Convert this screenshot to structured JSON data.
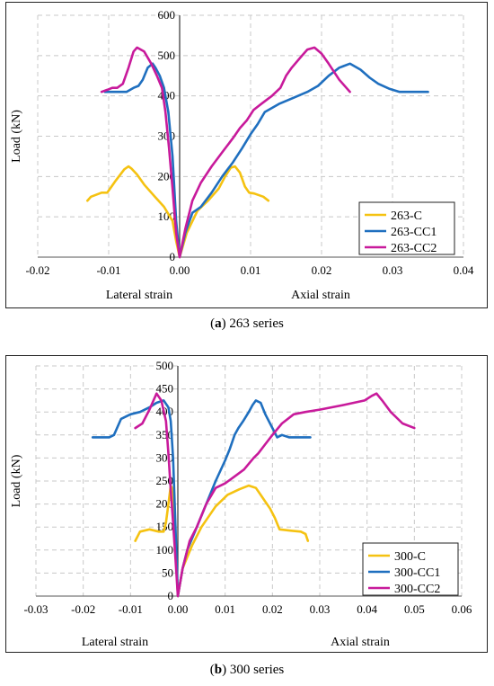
{
  "chart_data": [
    {
      "type": "line",
      "caption_label": "a",
      "caption_text": " 263 series",
      "ylabel": "Load (kN)",
      "xlabel_left": "Lateral strain",
      "xlabel_right": "Axial strain",
      "xlim": [
        -0.02,
        0.04
      ],
      "ylim": [
        0,
        600
      ],
      "xticks": [
        -0.02,
        -0.01,
        0.0,
        0.01,
        0.02,
        0.03,
        0.04
      ],
      "xtick_labels": [
        "-0.02",
        "-0.01",
        "0.00",
        "0.01",
        "0.02",
        "0.03",
        "0.04"
      ],
      "yticks": [
        0,
        100,
        200,
        300,
        400,
        500,
        600
      ],
      "ytick_labels": [
        "0",
        "100",
        "200",
        "300",
        "400",
        "500",
        "600"
      ],
      "grid": true,
      "legend_position": "bottom-right",
      "series": [
        {
          "name": "263-C",
          "color": "#F5C211",
          "x": [
            0.0125,
            0.0118,
            0.0105,
            0.0098,
            0.0092,
            0.0085,
            0.0078,
            0.0072,
            0.0064,
            0.0055,
            0.004,
            0.0025,
            0.001,
            0.0,
            -0.0005,
            -0.001,
            -0.0022,
            -0.0035,
            -0.005,
            -0.006,
            -0.0068,
            -0.0072,
            -0.0078,
            -0.009,
            -0.0102,
            -0.011,
            -0.0125,
            -0.013
          ],
          "y": [
            140,
            150,
            158,
            160,
            175,
            210,
            225,
            222,
            200,
            170,
            140,
            115,
            60,
            0,
            40,
            90,
            125,
            150,
            180,
            205,
            220,
            225,
            218,
            190,
            160,
            160,
            150,
            140
          ]
        },
        {
          "name": "263-CC1",
          "color": "#1F6FBF",
          "x": [
            0.035,
            0.033,
            0.031,
            0.0295,
            0.028,
            0.0268,
            0.0255,
            0.024,
            0.0225,
            0.021,
            0.0195,
            0.018,
            0.016,
            0.014,
            0.012,
            0.011,
            0.01,
            0.0088,
            0.0075,
            0.006,
            0.0045,
            0.003,
            0.0018,
            0.0008,
            0.0,
            -0.0005,
            -0.001,
            -0.0016,
            -0.0022,
            -0.0028,
            -0.0034,
            -0.0038,
            -0.0045,
            -0.0052,
            -0.0058,
            -0.0065,
            -0.0075,
            -0.0085,
            -0.0095,
            -0.0105
          ],
          "y": [
            410,
            410,
            410,
            418,
            430,
            445,
            465,
            480,
            470,
            450,
            425,
            410,
            395,
            380,
            360,
            330,
            305,
            270,
            235,
            200,
            160,
            125,
            110,
            60,
            0,
            90,
            250,
            360,
            420,
            450,
            470,
            480,
            470,
            440,
            425,
            420,
            410,
            410,
            410,
            410
          ]
        },
        {
          "name": "263-CC2",
          "color": "#C81A9B",
          "x": [
            0.024,
            0.0225,
            0.021,
            0.02,
            0.019,
            0.018,
            0.017,
            0.0158,
            0.015,
            0.0142,
            0.013,
            0.0115,
            0.0104,
            0.0095,
            0.0085,
            0.0075,
            0.006,
            0.0045,
            0.003,
            0.0018,
            0.0008,
            0.0,
            -0.0005,
            -0.001,
            -0.0015,
            -0.002,
            -0.0025,
            -0.0032,
            -0.004,
            -0.005,
            -0.006,
            -0.0065,
            -0.0072,
            -0.008,
            -0.0088,
            -0.0095,
            -0.0102,
            -0.011
          ],
          "y": [
            410,
            440,
            480,
            505,
            520,
            515,
            495,
            470,
            450,
            420,
            400,
            380,
            365,
            340,
            320,
            295,
            260,
            225,
            185,
            140,
            70,
            0,
            60,
            170,
            270,
            360,
            420,
            450,
            480,
            510,
            520,
            510,
            470,
            430,
            420,
            420,
            415,
            410
          ]
        }
      ]
    },
    {
      "type": "line",
      "caption_label": "b",
      "caption_text": " 300 series",
      "ylabel": "Load (kN)",
      "xlabel_left": "Lateral strain",
      "xlabel_right": "Axial strain",
      "xlim": [
        -0.03,
        0.06
      ],
      "ylim": [
        0,
        500
      ],
      "xticks": [
        -0.03,
        -0.02,
        -0.01,
        0.0,
        0.01,
        0.02,
        0.03,
        0.04,
        0.05,
        0.06
      ],
      "xtick_labels": [
        "-0.03",
        "-0.02",
        "-0.01",
        "0.00",
        "0.01",
        "0.02",
        "0.03",
        "0.04",
        "0.05",
        "0.06"
      ],
      "yticks": [
        0,
        50,
        100,
        150,
        200,
        250,
        300,
        350,
        400,
        450,
        500
      ],
      "ytick_labels": [
        "0",
        "50",
        "100",
        "150",
        "200",
        "250",
        "300",
        "350",
        "400",
        "450",
        "500"
      ],
      "grid": true,
      "legend_position": "bottom-right",
      "series": [
        {
          "name": "300-C",
          "color": "#F5C211",
          "x": [
            0.0275,
            0.027,
            0.026,
            0.024,
            0.0215,
            0.0205,
            0.0195,
            0.0185,
            0.0175,
            0.0165,
            0.015,
            0.013,
            0.0105,
            0.008,
            0.005,
            0.003,
            0.001,
            0.0,
            -0.0005,
            -0.001,
            -0.0015,
            -0.002,
            -0.0025,
            -0.003,
            -0.004,
            -0.006,
            -0.008,
            -0.009
          ],
          "y": [
            120,
            135,
            140,
            142,
            145,
            170,
            190,
            205,
            220,
            235,
            240,
            232,
            220,
            195,
            150,
            110,
            60,
            0,
            120,
            230,
            240,
            200,
            160,
            140,
            140,
            145,
            140,
            120
          ]
        },
        {
          "name": "300-CC1",
          "color": "#1F6FBF",
          "x": [
            0.028,
            0.026,
            0.0235,
            0.022,
            0.021,
            0.02,
            0.0185,
            0.0175,
            0.0165,
            0.0158,
            0.015,
            0.0138,
            0.0128,
            0.012,
            0.011,
            0.01,
            0.008,
            0.006,
            0.004,
            0.002,
            0.001,
            0.0,
            -0.0005,
            -0.001,
            -0.0015,
            -0.002,
            -0.003,
            -0.0045,
            -0.006,
            -0.008,
            -0.01,
            -0.012,
            -0.0135,
            -0.0145,
            -0.016,
            -0.018
          ],
          "y": [
            345,
            345,
            345,
            350,
            345,
            365,
            395,
            420,
            425,
            415,
            400,
            380,
            365,
            350,
            320,
            295,
            250,
            200,
            150,
            100,
            60,
            0,
            150,
            300,
            380,
            410,
            425,
            420,
            410,
            400,
            395,
            385,
            350,
            345,
            345,
            345
          ]
        },
        {
          "name": "300-CC2",
          "color": "#C81A9B",
          "x": [
            0.05,
            0.0475,
            0.045,
            0.0432,
            0.042,
            0.041,
            0.0395,
            0.035,
            0.03,
            0.027,
            0.0245,
            0.022,
            0.02,
            0.0185,
            0.017,
            0.016,
            0.014,
            0.012,
            0.01,
            0.008,
            0.006,
            0.004,
            0.0025,
            0.001,
            0.0,
            -0.0005,
            -0.001,
            -0.0015,
            -0.002,
            -0.0025,
            -0.0035,
            -0.0045,
            -0.006,
            -0.0075,
            -0.009
          ],
          "y": [
            365,
            375,
            400,
            425,
            440,
            435,
            425,
            415,
            405,
            400,
            395,
            375,
            350,
            330,
            310,
            300,
            275,
            260,
            245,
            235,
            200,
            150,
            120,
            60,
            0,
            80,
            160,
            230,
            310,
            380,
            425,
            440,
            405,
            375,
            365
          ]
        }
      ]
    }
  ]
}
